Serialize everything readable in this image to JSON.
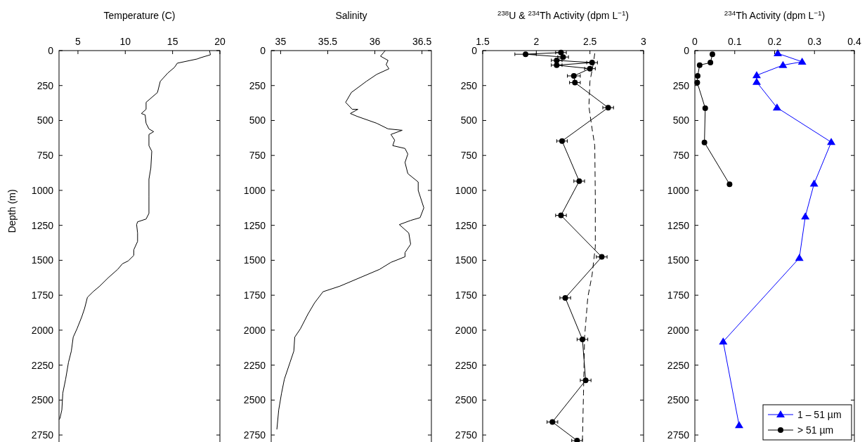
{
  "chart_data": [
    {
      "type": "line",
      "title": "Temperature (C)",
      "ylabel": "Depth (m)",
      "xlim": [
        3,
        20
      ],
      "xticks": [
        5,
        10,
        15,
        20
      ],
      "ylim": [
        2800,
        0
      ],
      "yticks": [
        0,
        250,
        500,
        750,
        1000,
        1250,
        1500,
        1750,
        2000,
        2250,
        2500,
        2750
      ],
      "marker": "none",
      "line_style": "solid",
      "grid": false,
      "legend": false,
      "series": [
        {
          "color": "#000000",
          "x": [
            18.9,
            19.0,
            18.0,
            17.6,
            15.5,
            15.2,
            14.5,
            13.7,
            13.4,
            12.2,
            12.2,
            11.7,
            12.1,
            12.2,
            12.5,
            13.0,
            12.5,
            12.5,
            12.8,
            12.7,
            12.5,
            12.5,
            12.5,
            12.2,
            11.3,
            11.2,
            11.3,
            11.3,
            10.9,
            10.9,
            10.3,
            9.7,
            9.2,
            8.2,
            7.3,
            6.6,
            6.0,
            5.7,
            5.4,
            4.9,
            4.5,
            4.3,
            4.0,
            3.7,
            3.4,
            3.3,
            3.1,
            3.0
          ],
          "values": [
            0,
            30,
            50,
            60,
            90,
            120,
            160,
            220,
            300,
            370,
            420,
            450,
            460,
            520,
            560,
            580,
            600,
            680,
            720,
            840,
            920,
            1045,
            1165,
            1205,
            1225,
            1245,
            1305,
            1365,
            1425,
            1465,
            1505,
            1525,
            1565,
            1625,
            1685,
            1725,
            1765,
            1845,
            1905,
            1990,
            2050,
            2150,
            2230,
            2350,
            2450,
            2570,
            2630,
            2640
          ]
        }
      ]
    },
    {
      "type": "line",
      "title": "Salinity",
      "xlim": [
        34.9,
        36.6
      ],
      "xticks": [
        35,
        35.5,
        36,
        36.5
      ],
      "ylim": [
        2800,
        0
      ],
      "yticks": [
        0,
        250,
        500,
        750,
        1000,
        1250,
        1500,
        1750,
        2000,
        2250,
        2500,
        2750
      ],
      "marker": "none",
      "line_style": "solid",
      "grid": false,
      "legend": false,
      "series": [
        {
          "color": "#000000",
          "x": [
            36.11,
            36.06,
            36.14,
            36.12,
            36.15,
            36.02,
            35.91,
            35.75,
            35.69,
            35.76,
            35.82,
            35.74,
            35.81,
            36.02,
            36.14,
            36.29,
            36.17,
            36.21,
            36.19,
            36.32,
            36.35,
            36.32,
            36.35,
            36.46,
            36.46,
            36.52,
            36.48,
            36.38,
            36.26,
            36.36,
            36.38,
            36.32,
            36.32,
            36.17,
            36.05,
            35.84,
            35.63,
            35.45,
            35.36,
            35.29,
            35.21,
            35.15,
            35.14,
            35.1,
            35.04,
            35.01,
            34.98,
            34.96
          ],
          "values": [
            0,
            40,
            70,
            100,
            130,
            170,
            220,
            300,
            370,
            420,
            420,
            450,
            470,
            520,
            560,
            570,
            600,
            640,
            680,
            700,
            740,
            800,
            880,
            940,
            1000,
            1125,
            1195,
            1215,
            1245,
            1305,
            1385,
            1445,
            1475,
            1515,
            1565,
            1625,
            1685,
            1725,
            1805,
            1885,
            1990,
            2050,
            2150,
            2230,
            2350,
            2450,
            2570,
            2710
          ]
        }
      ]
    },
    {
      "type": "line",
      "title": "$^{238}$U & $^{234}$Th Activity (dpm L$^{−1}$)",
      "xlim": [
        1.5,
        3
      ],
      "xticks": [
        1.5,
        2,
        2.5,
        3
      ],
      "ylim": [
        2800,
        0
      ],
      "yticks": [
        0,
        250,
        500,
        750,
        1000,
        1250,
        1500,
        1750,
        2000,
        2250,
        2500,
        2750
      ],
      "grid": false,
      "legend": false,
      "series": [
        {
          "color": "#000000",
          "marker": "circle",
          "line_style": "solid",
          "x": [
            2.23,
            1.9,
            2.25,
            2.19,
            2.52,
            2.19,
            2.5,
            2.35,
            2.36,
            2.67,
            2.24,
            2.4,
            2.23,
            2.61,
            2.27,
            2.43,
            2.46,
            2.15,
            2.38
          ],
          "values": [
            14,
            26,
            46,
            70,
            86,
            104,
            129,
            181,
            229,
            408,
            647,
            934,
            1179,
            1476,
            1769,
            2066,
            2359,
            2657,
            2790
          ],
          "xerrors": [
            0.05,
            0.1,
            0.05,
            0.05,
            0.05,
            0.05,
            0.05,
            0.06,
            0.05,
            0.05,
            0.05,
            0.05,
            0.05,
            0.05,
            0.05,
            0.05,
            0.05,
            0.05,
            0.05
          ]
        },
        {
          "color": "#000000",
          "marker": "none",
          "line_style": "dashed",
          "x": [
            2.545,
            2.53,
            2.5,
            2.49,
            2.52,
            2.545,
            2.55,
            2.55,
            2.52,
            2.48,
            2.45,
            2.44,
            2.43
          ],
          "values": [
            20,
            100,
            220,
            400,
            560,
            680,
            1045,
            1405,
            1605,
            1765,
            2050,
            2450,
            2790
          ]
        }
      ]
    },
    {
      "type": "line",
      "title": "$^{234}$Th Activity (dpm L$^{−1}$)",
      "xlim": [
        0,
        0.4
      ],
      "xticks": [
        0,
        0.1,
        0.2,
        0.3,
        0.4
      ],
      "ylim": [
        2800,
        0
      ],
      "yticks": [
        0,
        250,
        500,
        750,
        1000,
        1250,
        1500,
        1750,
        2000,
        2250,
        2500,
        2750
      ],
      "grid": false,
      "legend": "bottom right",
      "series": [
        {
          "name": "1 – 51 µm",
          "color": "#0000ff",
          "marker": "triangle",
          "line_style": "solid",
          "x": [
            0.208,
            0.269,
            0.221,
            0.155,
            0.155,
            0.206,
            0.342,
            0.299,
            0.277,
            0.262,
            0.071,
            0.111
          ],
          "values": [
            20,
            80,
            104,
            177,
            225,
            408,
            655,
            952,
            1187,
            1484,
            2082,
            2681
          ]
        },
        {
          "name": "> 51 µm",
          "color": "#000000",
          "marker": "circle",
          "line_style": "solid",
          "x": [
            0.044,
            0.039,
            0.012,
            0.007,
            0.006,
            0.026,
            0.024,
            0.087
          ],
          "values": [
            26,
            86,
            104,
            181,
            229,
            412,
            657,
            956
          ]
        }
      ]
    }
  ]
}
